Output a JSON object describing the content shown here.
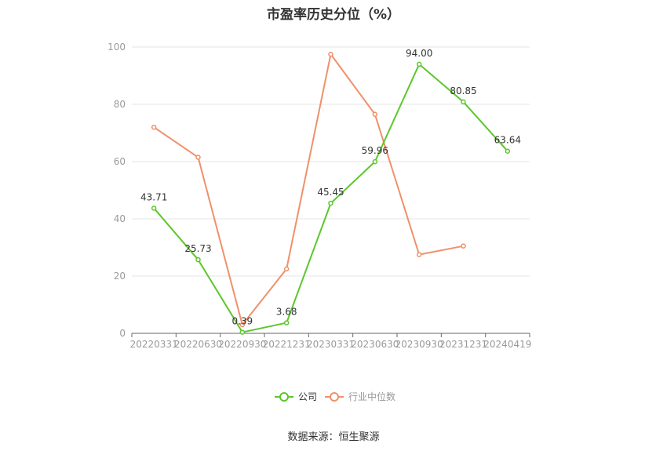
{
  "chart_data": {
    "type": "line",
    "title": "市盈率历史分位（%）",
    "categories": [
      "20220331",
      "20220630",
      "20220930",
      "20221231",
      "20230331",
      "20230630",
      "20230930",
      "20231231",
      "20240419"
    ],
    "ylim": [
      0,
      100
    ],
    "yticks": [
      0,
      20,
      40,
      60,
      80,
      100
    ],
    "grid": true,
    "legend_position": "bottom",
    "series": [
      {
        "name": "公司",
        "color": "#5cc72c",
        "values": [
          43.71,
          25.73,
          0.39,
          3.68,
          45.45,
          59.96,
          94.0,
          80.85,
          63.64
        ],
        "labels": [
          "43.71",
          "25.73",
          "0.39",
          "3.68",
          "45.45",
          "59.96",
          "94.00",
          "80.85",
          "63.64"
        ]
      },
      {
        "name": "行业中位数",
        "color": "#f0906a",
        "values": [
          72,
          61.5,
          3,
          22.5,
          97.5,
          76.5,
          27.5,
          30.5,
          null
        ]
      }
    ]
  },
  "source": "数据来源：恒生聚源"
}
